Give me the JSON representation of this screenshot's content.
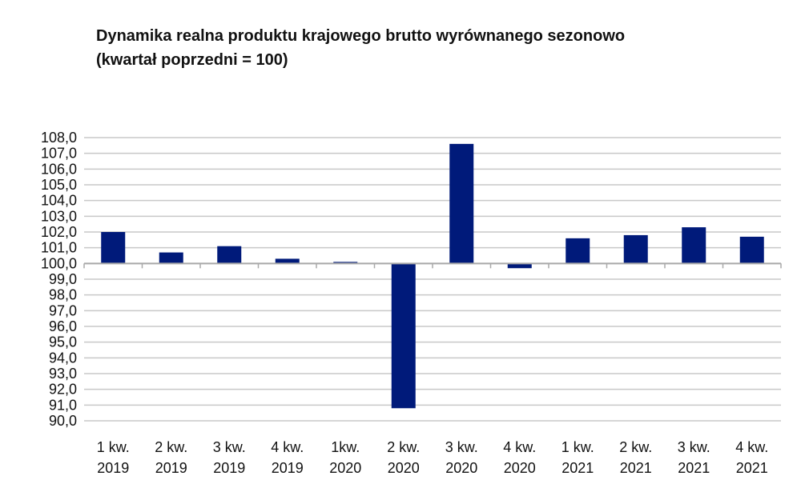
{
  "chart_data": {
    "type": "bar",
    "title": "Dynamika realna produktu krajowego brutto wyrównanego sezonowo",
    "subtitle": "(kwartał poprzedni = 100)",
    "categories": [
      [
        "1 kw.",
        "2019"
      ],
      [
        "2 kw.",
        "2019"
      ],
      [
        "3 kw.",
        "2019"
      ],
      [
        "4 kw.",
        "2019"
      ],
      [
        "1kw.",
        "2020"
      ],
      [
        "2 kw.",
        "2020"
      ],
      [
        "3 kw.",
        "2020"
      ],
      [
        "4 kw.",
        "2020"
      ],
      [
        "1 kw.",
        "2021"
      ],
      [
        "2 kw.",
        "2021"
      ],
      [
        "3 kw.",
        "2021"
      ],
      [
        "4 kw.",
        "2021"
      ]
    ],
    "values": [
      102.0,
      100.7,
      101.1,
      100.3,
      100.1,
      90.8,
      107.6,
      99.7,
      101.6,
      101.8,
      102.3,
      101.7
    ],
    "baseline": 100.0,
    "ylim": [
      90.0,
      108.0
    ],
    "ytick_step": 1.0,
    "ytick_labels": [
      "108,0",
      "107,0",
      "106,0",
      "105,0",
      "104,0",
      "103,0",
      "102,0",
      "101,0",
      "100,0",
      "99,0",
      "98,0",
      "97,0",
      "96,0",
      "95,0",
      "94,0",
      "93,0",
      "92,0",
      "91,0",
      "90,0"
    ],
    "bar_color": "#001a7a",
    "grid": true,
    "grid_color": "#c8c8c8",
    "legend": "none"
  }
}
